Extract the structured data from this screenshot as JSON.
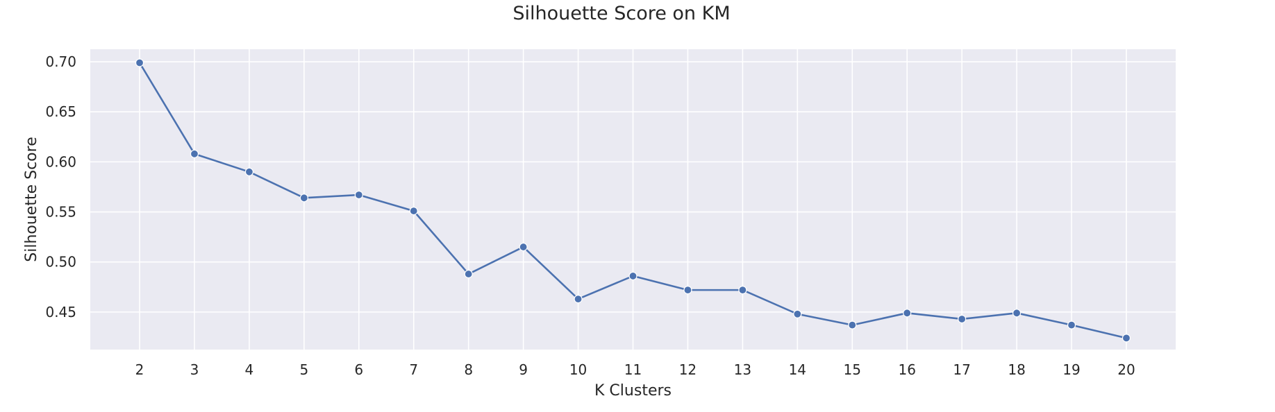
{
  "chart_data": {
    "type": "line",
    "title": "Silhouette Score on KM",
    "xlabel": "K Clusters",
    "ylabel": "Silhouette Score",
    "x": [
      2,
      3,
      4,
      5,
      6,
      7,
      8,
      9,
      10,
      11,
      12,
      13,
      14,
      15,
      16,
      17,
      18,
      19,
      20
    ],
    "series": [
      {
        "values": [
          0.699,
          0.608,
          0.59,
          0.564,
          0.567,
          0.551,
          0.488,
          0.515,
          0.463,
          0.486,
          0.472,
          0.472,
          0.448,
          0.437,
          0.449,
          0.443,
          0.449,
          0.437,
          0.424
        ]
      }
    ],
    "xlim": [
      1.1,
      20.9
    ],
    "ylim": [
      0.4125,
      0.7125
    ],
    "yticks": [
      0.45,
      0.5,
      0.55,
      0.6,
      0.65,
      0.7
    ],
    "ytick_labels": [
      "0.45",
      "0.50",
      "0.55",
      "0.60",
      "0.65",
      "0.70"
    ],
    "xtick_labels": [
      "2",
      "3",
      "4",
      "5",
      "6",
      "7",
      "8",
      "9",
      "10",
      "11",
      "12",
      "13",
      "14",
      "15",
      "16",
      "17",
      "18",
      "19",
      "20"
    ],
    "grid": true,
    "colors": {
      "plot_background": "#EAEAF2",
      "grid": "#FFFFFF",
      "line": "#4C72B0"
    }
  }
}
